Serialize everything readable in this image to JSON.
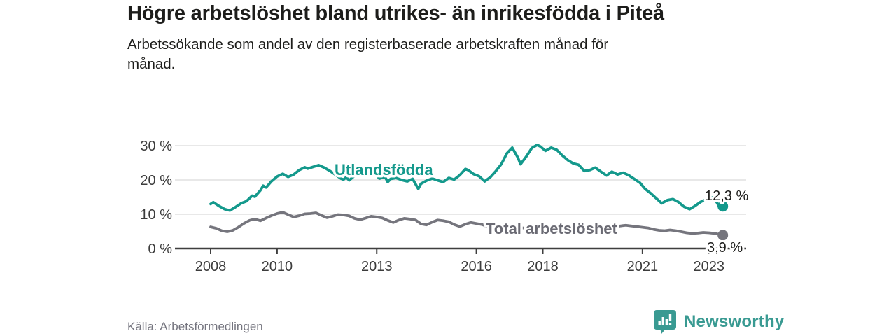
{
  "header": {
    "title": "Högre arbetslöshet bland utrikes- än inrikesfödda i Piteå",
    "subtitle": "Arbetssökande som andel av den registerbaserade arbetskraften månad för månad."
  },
  "footer": {
    "source": "Källa: Arbetsförmedlingen",
    "brand": "Newsworthy",
    "brand_icon": "newsworthy-bar-chart-bubble-icon"
  },
  "colors": {
    "accent_teal": "#14998c",
    "line_gray": "#75757d",
    "label_gray": "#6b6b74",
    "text_dark": "#1d1d1b",
    "axis_text": "#3c3c3c",
    "gridline": "#dadada",
    "axis_line": "#3f3f3f",
    "background": "#ffffff"
  },
  "chart_data": {
    "type": "line",
    "title": "Högre arbetslöshet bland utrikes- än inrikesfödda i Piteå",
    "xlabel": "",
    "ylabel": "",
    "x_axis": {
      "ticks": [
        2008,
        2010,
        2013,
        2016,
        2018,
        2021,
        2023
      ],
      "range": [
        2007.6,
        2024.1
      ]
    },
    "y_axis": {
      "ticks": [
        0,
        10,
        20,
        30
      ],
      "tick_suffix": " %",
      "range": [
        0,
        30
      ],
      "grid": true
    },
    "legend_position": "inline-labels",
    "series": [
      {
        "name": "Utlandsfödda",
        "color": "#14998c",
        "end_label": "12,3 %",
        "end_value": 12.3,
        "points": [
          [
            2008.0,
            13.0
          ],
          [
            2008.08,
            13.5
          ],
          [
            2008.25,
            12.4
          ],
          [
            2008.42,
            11.5
          ],
          [
            2008.58,
            11.1
          ],
          [
            2008.75,
            12.1
          ],
          [
            2008.92,
            13.2
          ],
          [
            2009.08,
            13.8
          ],
          [
            2009.25,
            15.4
          ],
          [
            2009.33,
            15.1
          ],
          [
            2009.5,
            17.0
          ],
          [
            2009.58,
            18.3
          ],
          [
            2009.67,
            17.8
          ],
          [
            2009.83,
            19.6
          ],
          [
            2010.0,
            21.0
          ],
          [
            2010.17,
            21.8
          ],
          [
            2010.33,
            20.9
          ],
          [
            2010.5,
            21.6
          ],
          [
            2010.67,
            22.9
          ],
          [
            2010.83,
            23.7
          ],
          [
            2010.92,
            23.3
          ],
          [
            2011.08,
            23.8
          ],
          [
            2011.25,
            24.3
          ],
          [
            2011.42,
            23.6
          ],
          [
            2011.58,
            22.7
          ],
          [
            2011.75,
            21.6
          ],
          [
            2011.92,
            20.4
          ],
          [
            2012.0,
            20.1
          ],
          [
            2012.08,
            20.8
          ],
          [
            2012.17,
            19.9
          ],
          [
            2012.33,
            21.2
          ],
          [
            2012.5,
            23.0
          ],
          [
            2012.58,
            24.0
          ],
          [
            2012.75,
            23.5
          ],
          [
            2012.92,
            22.2
          ],
          [
            2013.08,
            20.4
          ],
          [
            2013.25,
            20.9
          ],
          [
            2013.33,
            19.4
          ],
          [
            2013.42,
            20.3
          ],
          [
            2013.58,
            20.6
          ],
          [
            2013.75,
            20.0
          ],
          [
            2013.92,
            19.6
          ],
          [
            2014.08,
            20.3
          ],
          [
            2014.25,
            17.4
          ],
          [
            2014.33,
            18.9
          ],
          [
            2014.5,
            19.8
          ],
          [
            2014.67,
            20.4
          ],
          [
            2014.83,
            19.9
          ],
          [
            2015.0,
            19.4
          ],
          [
            2015.17,
            20.6
          ],
          [
            2015.33,
            20.1
          ],
          [
            2015.5,
            21.4
          ],
          [
            2015.67,
            23.2
          ],
          [
            2015.75,
            22.9
          ],
          [
            2015.92,
            21.7
          ],
          [
            2016.08,
            21.1
          ],
          [
            2016.25,
            19.6
          ],
          [
            2016.42,
            20.8
          ],
          [
            2016.58,
            22.5
          ],
          [
            2016.75,
            24.6
          ],
          [
            2016.92,
            27.8
          ],
          [
            2017.08,
            29.4
          ],
          [
            2017.25,
            26.5
          ],
          [
            2017.33,
            24.6
          ],
          [
            2017.5,
            26.8
          ],
          [
            2017.67,
            29.3
          ],
          [
            2017.83,
            30.2
          ],
          [
            2017.92,
            29.8
          ],
          [
            2018.08,
            28.5
          ],
          [
            2018.25,
            29.4
          ],
          [
            2018.42,
            28.8
          ],
          [
            2018.58,
            27.2
          ],
          [
            2018.75,
            25.8
          ],
          [
            2018.92,
            24.8
          ],
          [
            2019.08,
            24.4
          ],
          [
            2019.25,
            22.6
          ],
          [
            2019.42,
            22.9
          ],
          [
            2019.58,
            23.6
          ],
          [
            2019.75,
            22.4
          ],
          [
            2019.92,
            21.3
          ],
          [
            2020.08,
            22.4
          ],
          [
            2020.25,
            21.6
          ],
          [
            2020.42,
            22.1
          ],
          [
            2020.58,
            21.4
          ],
          [
            2020.75,
            20.3
          ],
          [
            2020.92,
            19.2
          ],
          [
            2021.08,
            17.4
          ],
          [
            2021.25,
            16.1
          ],
          [
            2021.42,
            14.6
          ],
          [
            2021.58,
            13.2
          ],
          [
            2021.75,
            14.1
          ],
          [
            2021.92,
            14.4
          ],
          [
            2022.08,
            13.6
          ],
          [
            2022.25,
            12.2
          ],
          [
            2022.42,
            11.5
          ],
          [
            2022.58,
            12.4
          ],
          [
            2022.75,
            13.6
          ],
          [
            2022.92,
            14.4
          ],
          [
            2023.08,
            14.9
          ],
          [
            2023.17,
            14.3
          ],
          [
            2023.25,
            13.3
          ],
          [
            2023.33,
            11.8
          ],
          [
            2023.42,
            12.3
          ]
        ]
      },
      {
        "name": "Total arbetslöshet",
        "color": "#75757d",
        "end_label": "3,9 %",
        "end_value": 3.9,
        "points": [
          [
            2008.0,
            6.3
          ],
          [
            2008.17,
            5.9
          ],
          [
            2008.33,
            5.2
          ],
          [
            2008.5,
            4.9
          ],
          [
            2008.67,
            5.3
          ],
          [
            2008.83,
            6.2
          ],
          [
            2009.0,
            7.3
          ],
          [
            2009.17,
            8.2
          ],
          [
            2009.33,
            8.6
          ],
          [
            2009.5,
            8.1
          ],
          [
            2009.67,
            8.9
          ],
          [
            2009.83,
            9.6
          ],
          [
            2010.0,
            10.2
          ],
          [
            2010.17,
            10.6
          ],
          [
            2010.33,
            9.9
          ],
          [
            2010.5,
            9.2
          ],
          [
            2010.67,
            9.6
          ],
          [
            2010.83,
            10.1
          ],
          [
            2011.0,
            10.2
          ],
          [
            2011.17,
            10.4
          ],
          [
            2011.33,
            9.7
          ],
          [
            2011.5,
            9.0
          ],
          [
            2011.67,
            9.4
          ],
          [
            2011.83,
            9.9
          ],
          [
            2012.0,
            9.8
          ],
          [
            2012.17,
            9.5
          ],
          [
            2012.33,
            8.8
          ],
          [
            2012.5,
            8.4
          ],
          [
            2012.67,
            8.9
          ],
          [
            2012.83,
            9.4
          ],
          [
            2013.0,
            9.2
          ],
          [
            2013.17,
            8.9
          ],
          [
            2013.33,
            8.2
          ],
          [
            2013.5,
            7.6
          ],
          [
            2013.67,
            8.3
          ],
          [
            2013.83,
            8.8
          ],
          [
            2014.0,
            8.6
          ],
          [
            2014.17,
            8.3
          ],
          [
            2014.33,
            7.2
          ],
          [
            2014.5,
            6.9
          ],
          [
            2014.67,
            7.7
          ],
          [
            2014.83,
            8.3
          ],
          [
            2015.0,
            8.1
          ],
          [
            2015.17,
            7.8
          ],
          [
            2015.33,
            7.0
          ],
          [
            2015.5,
            6.4
          ],
          [
            2015.67,
            7.1
          ],
          [
            2015.83,
            7.6
          ],
          [
            2016.0,
            7.3
          ],
          [
            2016.17,
            7.0
          ],
          [
            2016.33,
            6.4
          ],
          [
            2016.5,
            6.2
          ],
          [
            2016.67,
            6.6
          ],
          [
            2016.83,
            7.0
          ],
          [
            2017.0,
            6.9
          ],
          [
            2017.17,
            6.6
          ],
          [
            2017.33,
            6.1
          ],
          [
            2017.5,
            5.9
          ],
          [
            2017.67,
            6.2
          ],
          [
            2017.83,
            6.5
          ],
          [
            2018.0,
            6.3
          ],
          [
            2018.17,
            6.0
          ],
          [
            2018.33,
            5.6
          ],
          [
            2018.5,
            5.5
          ],
          [
            2018.67,
            5.8
          ],
          [
            2018.83,
            6.1
          ],
          [
            2019.0,
            6.0
          ],
          [
            2019.17,
            5.8
          ],
          [
            2019.33,
            5.5
          ],
          [
            2019.5,
            5.6
          ],
          [
            2019.67,
            5.9
          ],
          [
            2019.83,
            6.1
          ],
          [
            2020.0,
            6.0
          ],
          [
            2020.17,
            6.2
          ],
          [
            2020.33,
            6.6
          ],
          [
            2020.5,
            6.8
          ],
          [
            2020.67,
            6.6
          ],
          [
            2020.83,
            6.4
          ],
          [
            2021.0,
            6.2
          ],
          [
            2021.17,
            6.0
          ],
          [
            2021.33,
            5.6
          ],
          [
            2021.5,
            5.3
          ],
          [
            2021.67,
            5.2
          ],
          [
            2021.83,
            5.4
          ],
          [
            2022.0,
            5.2
          ],
          [
            2022.17,
            4.9
          ],
          [
            2022.33,
            4.6
          ],
          [
            2022.5,
            4.4
          ],
          [
            2022.67,
            4.5
          ],
          [
            2022.83,
            4.7
          ],
          [
            2023.0,
            4.6
          ],
          [
            2023.17,
            4.4
          ],
          [
            2023.33,
            4.1
          ],
          [
            2023.42,
            3.9
          ]
        ]
      }
    ]
  }
}
